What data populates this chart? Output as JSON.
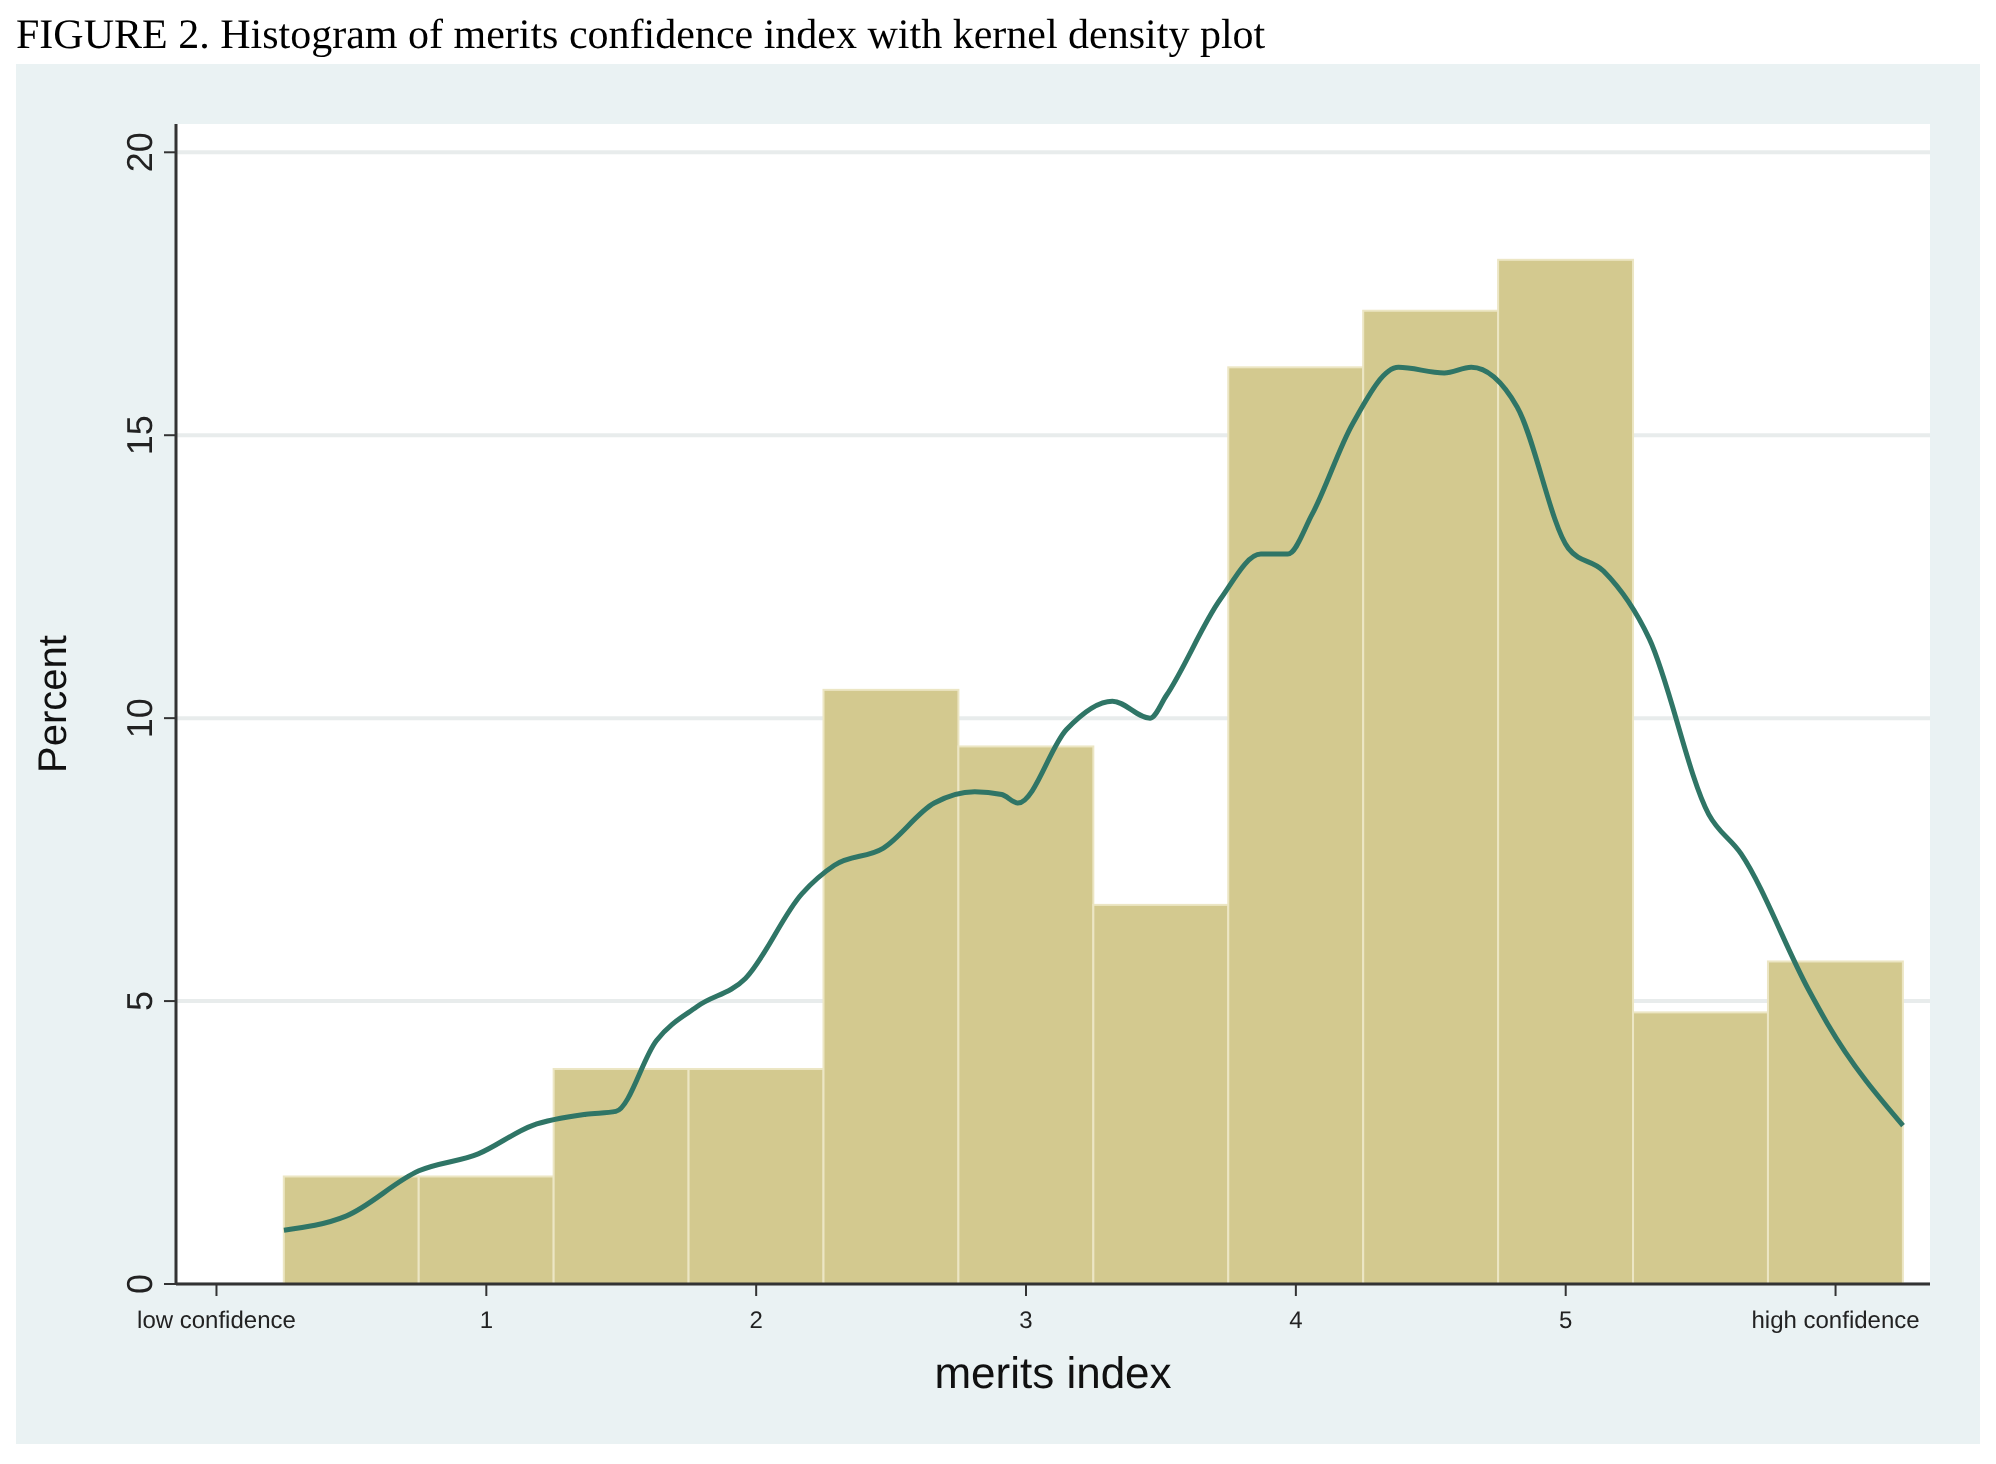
{
  "chart_data": {
    "type": "histogram",
    "title": "FIGURE 2. Histogram of merits confidence index with kernel density plot",
    "xlabel": "merits index",
    "ylabel": "Percent",
    "bins": [
      0.25,
      0.75,
      1.25,
      1.75,
      2.25,
      2.75,
      3.25,
      3.75,
      4.25,
      4.75,
      5.25,
      5.75,
      6.25
    ],
    "values": [
      1.9,
      1.9,
      3.8,
      3.8,
      10.5,
      9.5,
      6.7,
      16.2,
      17.2,
      18.1,
      4.8,
      5.7
    ],
    "color": "#d3c98f",
    "series": [
      {
        "type": "line",
        "color": "#2f7566",
        "x": [
          0.25,
          0.48,
          0.75,
          0.97,
          1.17,
          1.37,
          1.48,
          1.63,
          1.78,
          1.96,
          2.17,
          2.29,
          2.47,
          2.66,
          2.81,
          2.91,
          2.97,
          3.15,
          3.32,
          3.46,
          3.52,
          3.72,
          3.87,
          3.97,
          4.06,
          4.21,
          4.38,
          4.55,
          4.65,
          4.82,
          5.01,
          5.14,
          5.31,
          5.53,
          5.65,
          5.9,
          5.97,
          6.25
        ],
        "values": [
          0.95,
          1.2,
          2.0,
          2.3,
          2.8,
          3.0,
          3.05,
          4.3,
          4.9,
          5.4,
          6.9,
          7.4,
          7.7,
          8.5,
          8.7,
          8.65,
          8.5,
          9.8,
          10.3,
          10.0,
          10.4,
          12.1,
          12.9,
          12.9,
          13.6,
          15.2,
          16.2,
          16.1,
          16.2,
          15.5,
          13.0,
          12.6,
          11.4,
          8.3,
          7.6,
          5.2,
          4.6,
          2.8
        ]
      }
    ],
    "xlim": [
      -0.15,
      6.35
    ],
    "xticks": [
      {
        "value": 0,
        "label": "low confidence"
      },
      1,
      2,
      3,
      4,
      5,
      {
        "value": 6,
        "label": "high confidence"
      }
    ],
    "ylim": [
      0,
      20.5
    ],
    "yticks": [
      0,
      5,
      10,
      15,
      20
    ],
    "grid": "y",
    "marker": "none",
    "line_style": "solid"
  }
}
